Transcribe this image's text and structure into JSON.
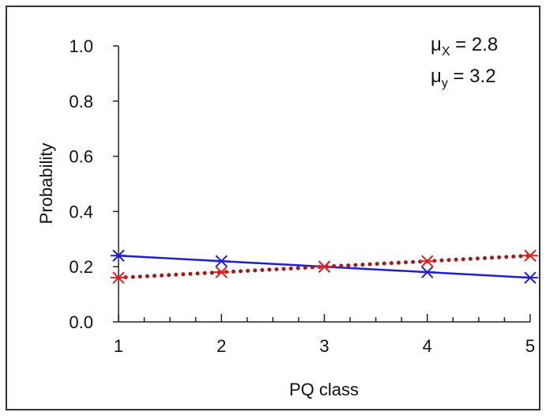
{
  "chart_data": {
    "type": "line",
    "title": "",
    "xlabel": "PQ class",
    "ylabel": "Probability",
    "x": [
      1,
      2,
      3,
      4,
      5
    ],
    "xlim": [
      1,
      5
    ],
    "ylim": [
      0,
      1
    ],
    "x_ticks": [
      "1",
      "2",
      "3",
      "4",
      "5"
    ],
    "y_ticks": [
      "0.0",
      "0.2",
      "0.4",
      "0.6",
      "0.8",
      "1.0"
    ],
    "grid": false,
    "legend": "none",
    "series": [
      {
        "values": [
          0.24,
          0.22,
          0.2,
          0.18,
          0.16
        ],
        "color": "#1f1fcf",
        "line_style": "solid",
        "marker": "asterisk"
      },
      {
        "values": [
          0.16,
          0.18,
          0.2,
          0.22,
          0.24
        ],
        "color": "#e02020",
        "line_style": "dotted",
        "line_color": "#a11a1a",
        "marker": "asterisk"
      }
    ],
    "annotations": [
      {
        "base": "μ",
        "sub": "X",
        "rest": " = 2.8",
        "position": "top-right"
      },
      {
        "base": "μ",
        "sub": "y",
        "rest": " = 3.2",
        "position": "top-right"
      }
    ]
  }
}
